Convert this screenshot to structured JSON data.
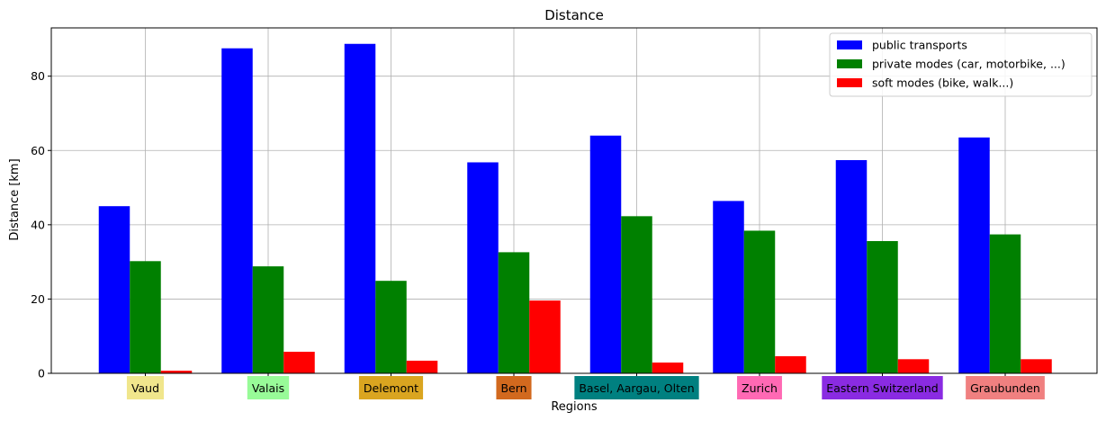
{
  "chart_data": {
    "type": "bar",
    "title": "Distance",
    "xlabel": "Regions",
    "ylabel": "Distance [km]",
    "ylim": [
      0,
      93
    ],
    "yticks": [
      0,
      20,
      40,
      60,
      80
    ],
    "grid": true,
    "legend_position": "top-right",
    "categories": [
      "Vaud",
      "Valais",
      "Delemont",
      "Bern",
      "Basel, Aargau, Olten",
      "Zurich",
      "Eastern Switzerland",
      "Graubunden"
    ],
    "category_label_colors": [
      "#f0e68c",
      "#98fb98",
      "#daa520",
      "#d2691e",
      "#008080",
      "#ff69b4",
      "#8a2be2",
      "#f08080"
    ],
    "series": [
      {
        "name": "public transports",
        "color": "#0000ff",
        "values": [
          45.0,
          87.5,
          88.7,
          56.8,
          64.0,
          46.4,
          57.4,
          63.5
        ]
      },
      {
        "name": "private modes (car, motorbike, ...)",
        "color": "#008000",
        "values": [
          30.2,
          28.8,
          24.9,
          32.6,
          42.3,
          38.4,
          35.6,
          37.4
        ]
      },
      {
        "name": "soft modes (bike, walk...)",
        "color": "#ff0000",
        "values": [
          0.7,
          5.8,
          3.4,
          19.6,
          2.9,
          4.6,
          3.8,
          3.8
        ]
      }
    ]
  }
}
